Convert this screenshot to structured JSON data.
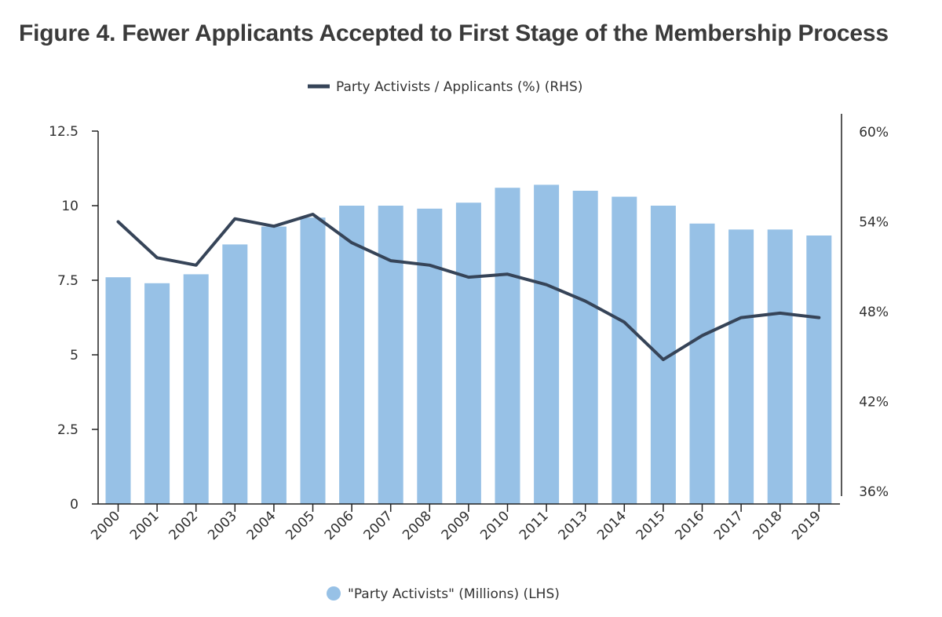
{
  "title": "Figure 4. Fewer Applicants Accepted to First Stage of the Membership Process",
  "chart_data": {
    "type": "bar",
    "categories": [
      "2000",
      "2001",
      "2002",
      "2003",
      "2004",
      "2005",
      "2006",
      "2007",
      "2008",
      "2009",
      "2010",
      "2011",
      "2013",
      "2014",
      "2015",
      "2016",
      "2017",
      "2018",
      "2019"
    ],
    "series": [
      {
        "name": "\"Party Activists\" (Millions) (LHS)",
        "type": "bar",
        "axis": "left",
        "values": [
          7.6,
          7.4,
          7.7,
          8.7,
          9.3,
          9.6,
          10.0,
          10.0,
          9.9,
          10.1,
          10.6,
          10.7,
          10.5,
          10.3,
          10.0,
          9.4,
          9.2,
          9.2,
          9.0
        ]
      },
      {
        "name": "Party Activists / Applicants (%) (RHS)",
        "type": "line",
        "axis": "right",
        "values": [
          54.0,
          51.6,
          51.1,
          54.2,
          53.7,
          54.5,
          52.6,
          51.4,
          51.1,
          50.3,
          50.5,
          49.8,
          48.7,
          47.3,
          44.8,
          46.4,
          47.6,
          47.9,
          47.6
        ]
      }
    ],
    "left_axis": {
      "min": 0,
      "max": 12.5,
      "ticks": [
        "0",
        "2.5",
        "5",
        "7.5",
        "10",
        "12.5"
      ]
    },
    "right_axis": {
      "min": 36,
      "max": 60,
      "ticks": [
        "36%",
        "42%",
        "48%",
        "54%",
        "60%"
      ]
    },
    "colors": {
      "bar": "#97c1e6",
      "line": "#364458"
    },
    "legend_top": "Party Activists / Applicants (%) (RHS)",
    "legend_bottom": "\"Party Activists\" (Millions) (LHS)",
    "grid": false
  }
}
